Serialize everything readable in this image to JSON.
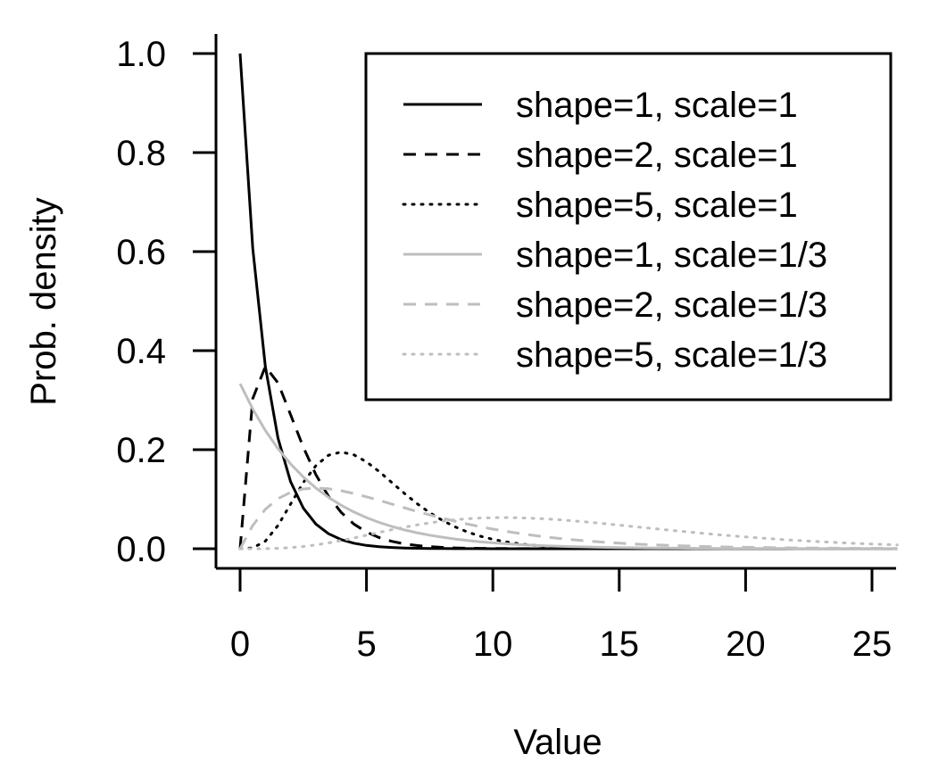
{
  "chart_data": {
    "type": "line",
    "title": "",
    "xlabel": "Value",
    "ylabel": "Prob. density",
    "xlim": [
      -1,
      26
    ],
    "ylim": [
      -0.04,
      1.04
    ],
    "x_ticks": [
      0,
      5,
      10,
      15,
      20,
      25
    ],
    "y_ticks": [
      0.0,
      0.2,
      0.4,
      0.6,
      0.8,
      1.0
    ],
    "x_tick_labels": [
      "0",
      "5",
      "10",
      "15",
      "20",
      "25"
    ],
    "y_tick_labels": [
      "0.0",
      "0.2",
      "0.4",
      "0.6",
      "0.8",
      "1.0"
    ],
    "grid": false,
    "legend_position": "top-right",
    "x": [
      0,
      0.5,
      1,
      1.5,
      2,
      2.5,
      3,
      3.5,
      4,
      4.5,
      5,
      5.5,
      6,
      6.5,
      7,
      7.5,
      8,
      8.5,
      9,
      9.5,
      10,
      10.5,
      11,
      11.5,
      12,
      12.5,
      13,
      13.5,
      14,
      14.5,
      15,
      15.5,
      16,
      16.5,
      17,
      17.5,
      18,
      18.5,
      19,
      19.5,
      20,
      20.5,
      21,
      21.5,
      22,
      22.5,
      23,
      23.5,
      24,
      24.5,
      25,
      25.5,
      26
    ],
    "series": [
      {
        "name": "shape=1, scale=1",
        "color": "#000000",
        "dash": "solid",
        "values": [
          1.0,
          0.6065,
          0.3679,
          0.2231,
          0.1353,
          0.0821,
          0.0498,
          0.0302,
          0.0183,
          0.0111,
          0.0067,
          0.0041,
          0.0025,
          0.0015,
          0.0009,
          0.0006,
          0.0003,
          0.0002,
          0.0001,
          0.0001,
          0.0,
          0.0,
          0.0,
          0.0,
          0.0,
          0.0,
          0.0,
          0.0,
          0.0,
          0.0,
          0.0,
          0.0,
          0.0,
          0.0,
          0.0,
          0.0,
          0.0,
          0.0,
          0.0,
          0.0,
          0.0,
          0.0,
          0.0,
          0.0,
          0.0,
          0.0,
          0.0,
          0.0,
          0.0,
          0.0,
          0.0,
          0.0,
          0.0
        ]
      },
      {
        "name": "shape=2, scale=1",
        "color": "#000000",
        "dash": "dashed",
        "values": [
          0.0,
          0.3033,
          0.3679,
          0.3347,
          0.2707,
          0.2052,
          0.1494,
          0.1057,
          0.0733,
          0.05,
          0.0337,
          0.0225,
          0.0149,
          0.0098,
          0.0064,
          0.0042,
          0.0027,
          0.0017,
          0.0011,
          0.0007,
          0.0005,
          0.0003,
          0.0002,
          0.0001,
          0.0001,
          0.0,
          0.0,
          0.0,
          0.0,
          0.0,
          0.0,
          0.0,
          0.0,
          0.0,
          0.0,
          0.0,
          0.0,
          0.0,
          0.0,
          0.0,
          0.0,
          0.0,
          0.0,
          0.0,
          0.0,
          0.0,
          0.0,
          0.0,
          0.0,
          0.0,
          0.0,
          0.0,
          0.0
        ]
      },
      {
        "name": "shape=5, scale=1",
        "color": "#000000",
        "dash": "dotted",
        "values": [
          0.0,
          0.0016,
          0.0153,
          0.0471,
          0.0902,
          0.1336,
          0.168,
          0.1888,
          0.1954,
          0.1898,
          0.1755,
          0.1558,
          0.1339,
          0.1118,
          0.0912,
          0.0729,
          0.0573,
          0.0443,
          0.0337,
          0.0254,
          0.0189,
          0.014,
          0.0102,
          0.0074,
          0.0053,
          0.0038,
          0.0027,
          0.0019,
          0.0013,
          0.0009,
          0.0006,
          0.0004,
          0.0003,
          0.0002,
          0.0001,
          0.0001,
          0.0001,
          0.0,
          0.0,
          0.0,
          0.0,
          0.0,
          0.0,
          0.0,
          0.0,
          0.0,
          0.0,
          0.0,
          0.0,
          0.0,
          0.0,
          0.0,
          0.0
        ]
      },
      {
        "name": "shape=1, scale=1/3",
        "color": "#bebebe",
        "dash": "solid",
        "values": [
          0.3333,
          0.2821,
          0.2388,
          0.2021,
          0.1711,
          0.1448,
          0.1226,
          0.1037,
          0.0878,
          0.0743,
          0.0629,
          0.0532,
          0.0451,
          0.0381,
          0.0323,
          0.0273,
          0.0232,
          0.0196,
          0.0166,
          0.014,
          0.0119,
          0.0101,
          0.0085,
          0.0072,
          0.0061,
          0.0052,
          0.0044,
          0.0037,
          0.0031,
          0.0027,
          0.0022,
          0.0019,
          0.0016,
          0.0014,
          0.0012,
          0.001,
          0.0008,
          0.0007,
          0.0006,
          0.0005,
          0.0004,
          0.0004,
          0.0003,
          0.0003,
          0.0002,
          0.0002,
          0.0002,
          0.0001,
          0.0001,
          0.0001,
          0.0001,
          0.0001,
          0.0001
        ]
      },
      {
        "name": "shape=2, scale=1/3",
        "color": "#bebebe",
        "dash": "dashed",
        "values": [
          0.0,
          0.047,
          0.0796,
          0.1011,
          0.1141,
          0.1207,
          0.1226,
          0.121,
          0.1171,
          0.1115,
          0.1049,
          0.0976,
          0.0902,
          0.0827,
          0.0754,
          0.0683,
          0.0618,
          0.0556,
          0.0498,
          0.0445,
          0.0396,
          0.0353,
          0.0313,
          0.0277,
          0.0244,
          0.0215,
          0.0189,
          0.0166,
          0.0146,
          0.0128,
          0.0112,
          0.0098,
          0.0086,
          0.0075,
          0.0066,
          0.0057,
          0.005,
          0.0043,
          0.0038,
          0.0033,
          0.0028,
          0.0025,
          0.0021,
          0.0018,
          0.0016,
          0.0014,
          0.0012,
          0.001,
          0.0009,
          0.0008,
          0.0007,
          0.0006,
          0.0005
        ]
      },
      {
        "name": "shape=5, scale=1/3",
        "color": "#bebebe",
        "dash": "dotted",
        "values": [
          0.0,
          0.0,
          0.0002,
          0.0008,
          0.0022,
          0.0045,
          0.0077,
          0.0118,
          0.0165,
          0.0217,
          0.0273,
          0.0329,
          0.0383,
          0.0434,
          0.0481,
          0.0522,
          0.0556,
          0.0584,
          0.0605,
          0.0619,
          0.0627,
          0.0629,
          0.0626,
          0.0617,
          0.0605,
          0.0589,
          0.057,
          0.0549,
          0.0526,
          0.0502,
          0.0477,
          0.0451,
          0.0425,
          0.04,
          0.0374,
          0.035,
          0.0326,
          0.0302,
          0.028,
          0.0259,
          0.0238,
          0.0219,
          0.0201,
          0.0184,
          0.0169,
          0.0154,
          0.014,
          0.0128,
          0.0116,
          0.0105,
          0.0095,
          0.0086,
          0.0078
        ]
      }
    ]
  }
}
